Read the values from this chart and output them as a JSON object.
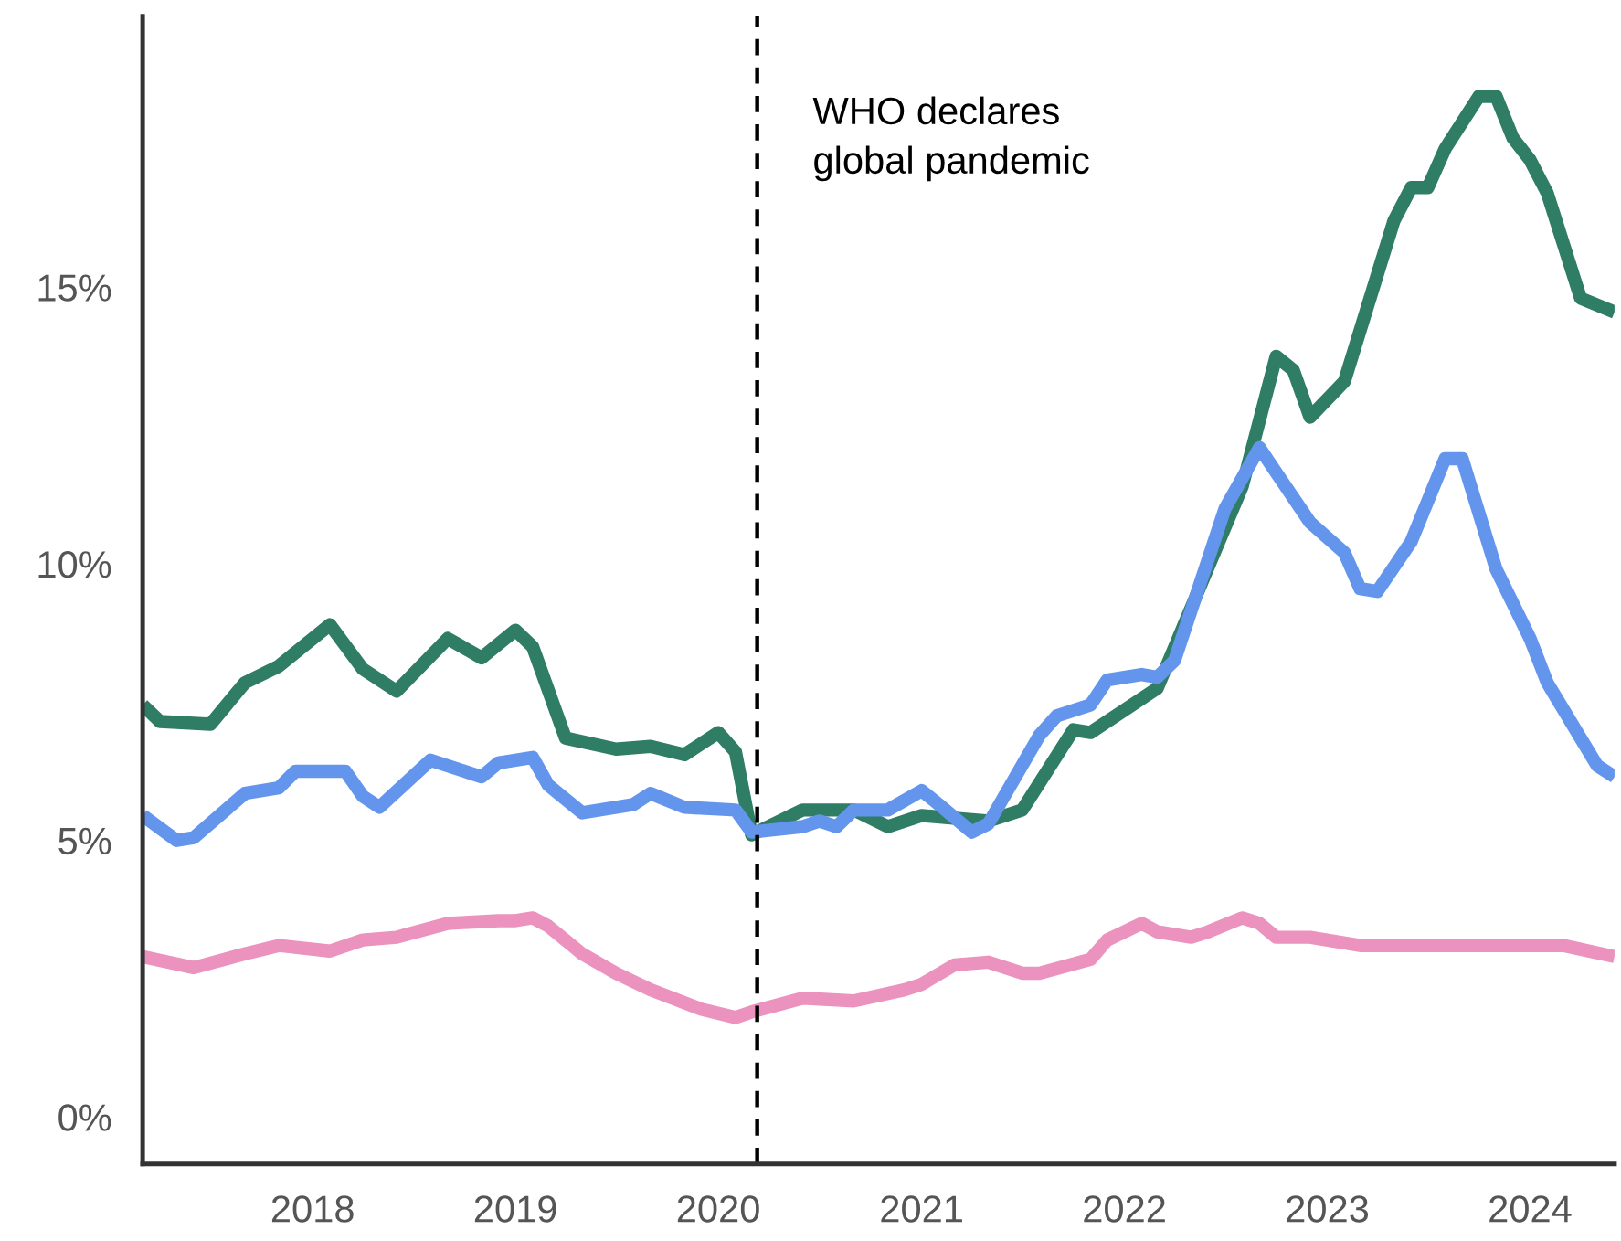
{
  "chart_data": {
    "type": "line",
    "series": [
      {
        "color": "#2e7d64",
        "x": [
          "2017-03",
          "2017-04",
          "2017-07",
          "2017-09",
          "2017-11",
          "2018-02",
          "2018-04",
          "2018-06",
          "2018-09",
          "2018-11",
          "2019-01",
          "2019-02",
          "2019-04",
          "2019-07",
          "2019-09",
          "2019-11",
          "2020-01",
          "2020-02",
          "2020-03",
          "2020-06",
          "2020-09",
          "2020-11",
          "2021-01",
          "2021-05",
          "2021-07",
          "2021-10",
          "2021-11",
          "2022-03",
          "2022-08",
          "2022-10",
          "2022-11",
          "2022-12",
          "2023-02",
          "2023-05",
          "2023-06",
          "2023-07",
          "2023-08",
          "2023-10",
          "2023-11",
          "2023-12",
          "2024-01",
          "2024-02",
          "2024-04",
          "2024-06"
        ],
        "values": [
          7.45,
          7.15,
          7.1,
          7.85,
          8.15,
          8.9,
          8.1,
          7.7,
          8.65,
          8.3,
          8.8,
          8.5,
          6.85,
          6.65,
          6.7,
          6.55,
          6.95,
          6.6,
          5.1,
          5.55,
          5.55,
          5.25,
          5.45,
          5.35,
          5.55,
          7.0,
          6.95,
          7.75,
          11.4,
          13.75,
          13.5,
          12.65,
          13.3,
          16.2,
          16.8,
          16.8,
          17.5,
          18.45,
          18.45,
          17.7,
          17.3,
          16.7,
          14.8,
          14.55
        ]
      },
      {
        "color": "#6495ed",
        "x": [
          "2017-03",
          "2017-05",
          "2017-06",
          "2017-09",
          "2017-11",
          "2017-12",
          "2018-03",
          "2018-04",
          "2018-05",
          "2018-08",
          "2018-11",
          "2018-12",
          "2019-02",
          "2019-03",
          "2019-05",
          "2019-08",
          "2019-09",
          "2019-11",
          "2020-02",
          "2020-03",
          "2020-06",
          "2020-07",
          "2020-08",
          "2020-09",
          "2020-11",
          "2021-01",
          "2021-02",
          "2021-04",
          "2021-05",
          "2021-08",
          "2021-09",
          "2021-11",
          "2021-12",
          "2022-02",
          "2022-03",
          "2022-04",
          "2022-07",
          "2022-09",
          "2022-10",
          "2022-12",
          "2023-02",
          "2023-03",
          "2023-04",
          "2023-06",
          "2023-08",
          "2023-09",
          "2023-11",
          "2024-01",
          "2024-02",
          "2024-04",
          "2024-05",
          "2024-06"
        ],
        "values": [
          5.45,
          5.0,
          5.05,
          5.85,
          5.95,
          6.25,
          6.25,
          5.8,
          5.6,
          6.45,
          6.15,
          6.4,
          6.5,
          6.0,
          5.5,
          5.65,
          5.85,
          5.6,
          5.55,
          5.15,
          5.25,
          5.35,
          5.25,
          5.55,
          5.55,
          5.9,
          5.65,
          5.15,
          5.3,
          6.9,
          7.25,
          7.45,
          7.9,
          8.0,
          7.95,
          8.25,
          11.0,
          12.1,
          11.65,
          10.75,
          10.2,
          9.55,
          9.5,
          10.4,
          11.9,
          11.9,
          9.9,
          8.65,
          7.85,
          6.85,
          6.35,
          6.15
        ]
      },
      {
        "color": "#eb92be",
        "x": [
          "2017-03",
          "2017-06",
          "2017-09",
          "2017-11",
          "2018-02",
          "2018-04",
          "2018-06",
          "2018-09",
          "2018-12",
          "2019-01",
          "2019-02",
          "2019-03",
          "2019-05",
          "2019-07",
          "2019-09",
          "2019-12",
          "2020-02",
          "2020-03",
          "2020-06",
          "2020-09",
          "2020-12",
          "2021-01",
          "2021-03",
          "2021-05",
          "2021-07",
          "2021-08",
          "2021-11",
          "2021-12",
          "2022-02",
          "2022-03",
          "2022-05",
          "2022-06",
          "2022-08",
          "2022-09",
          "2022-10",
          "2022-12",
          "2023-03",
          "2023-04",
          "2023-09",
          "2024-03",
          "2024-06"
        ],
        "values": [
          2.9,
          2.7,
          2.95,
          3.1,
          3.0,
          3.2,
          3.25,
          3.5,
          3.55,
          3.55,
          3.6,
          3.45,
          2.95,
          2.6,
          2.3,
          1.95,
          1.8,
          1.9,
          2.15,
          2.1,
          2.3,
          2.4,
          2.75,
          2.8,
          2.6,
          2.6,
          2.85,
          3.2,
          3.5,
          3.35,
          3.25,
          3.35,
          3.6,
          3.5,
          3.25,
          3.25,
          3.1,
          3.1,
          3.1,
          3.1,
          2.9
        ]
      }
    ],
    "xlim": [
      "2017-03",
      "2024-06"
    ],
    "xticks": [
      {
        "value": "2018-01",
        "label": "2018"
      },
      {
        "value": "2019-01",
        "label": "2019"
      },
      {
        "value": "2020-01",
        "label": "2020"
      },
      {
        "value": "2021-01",
        "label": "2021"
      },
      {
        "value": "2022-01",
        "label": "2022"
      },
      {
        "value": "2023-01",
        "label": "2023"
      },
      {
        "value": "2024-01",
        "label": "2024"
      }
    ],
    "ylim": [
      -0.85,
      19.9
    ],
    "yticks": [
      {
        "value": 0,
        "label": "0%"
      },
      {
        "value": 5,
        "label": "5%"
      },
      {
        "value": 10,
        "label": "10%"
      },
      {
        "value": 15,
        "label": "15%"
      }
    ],
    "ref_lines": [
      {
        "axis": "x",
        "value": "2020-03-11",
        "label": "WHO declares\nglobal pandemic",
        "color": "#000000",
        "line_style": "dashed"
      }
    ],
    "grid": false,
    "legend": false,
    "marker": "none",
    "line_style": "solid"
  }
}
